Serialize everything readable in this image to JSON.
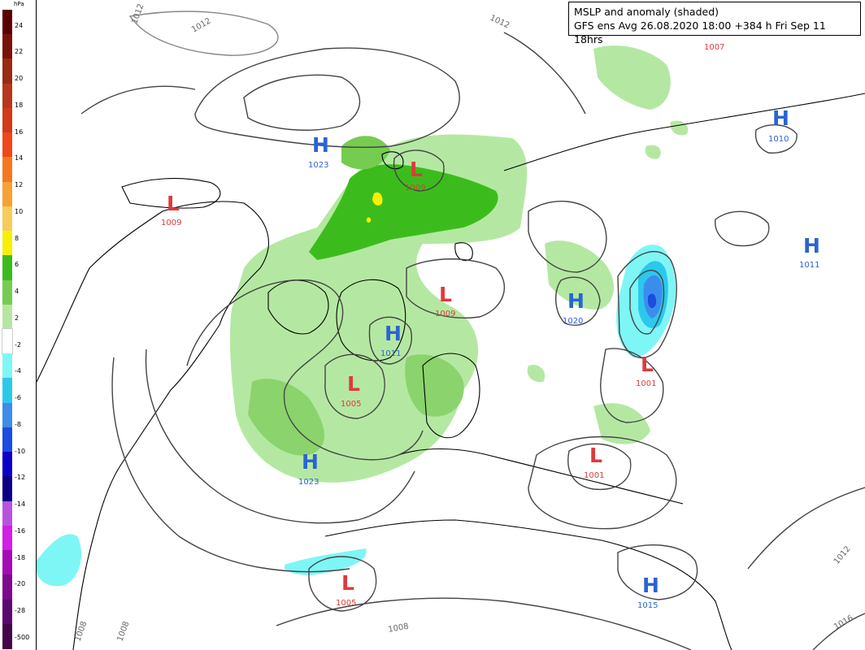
{
  "title": {
    "line1": "MSLP and anomaly (shaded)",
    "line2": "GFS ens Avg 26.08.2020 18:00 +384 h Fri Sep 11 18hrs"
  },
  "legend": {
    "unit": "hPa",
    "ticks": [
      "24",
      "22",
      "20",
      "18",
      "16",
      "14",
      "12",
      "10",
      "8",
      "6",
      "4",
      "2",
      "-2",
      "-4",
      "-6",
      "-8",
      "-10",
      "-12",
      "-14",
      "-16",
      "-18",
      "-20",
      "-28",
      "-500"
    ],
    "colors": [
      "#5a0000",
      "#7a1208",
      "#9a2a14",
      "#b8361c",
      "#d23a18",
      "#f0461a",
      "#f6781e",
      "#f8a232",
      "#f8cc5a",
      "#f8f000",
      "#3cbc1c",
      "#76cc50",
      "#b4e8a2",
      "#ffffff",
      "#7ef6f6",
      "#2cc8ec",
      "#3c8cec",
      "#1c4ce0",
      "#0c00c8",
      "#0c0084",
      "#ba52e0",
      "#d21ee6",
      "#a40ab6",
      "#7c0a8a",
      "#5c0670",
      "#44044c"
    ]
  },
  "pressure_centers": [
    {
      "type": "H",
      "letter": "H",
      "value": "1023"
    },
    {
      "type": "L",
      "letter": "L",
      "value": "1009"
    },
    {
      "type": "L",
      "letter": "L",
      "value": "1009"
    },
    {
      "type": "H",
      "letter": "H",
      "value": "1010"
    },
    {
      "type": "H",
      "letter": "H",
      "value": "1011"
    },
    {
      "type": "L",
      "letter": "L",
      "value": "1009"
    },
    {
      "type": "H",
      "letter": "H",
      "value": "1020"
    },
    {
      "type": "H",
      "letter": "H",
      "value": "1011"
    },
    {
      "type": "L",
      "letter": "L",
      "value": "1005"
    },
    {
      "type": "L",
      "letter": "L",
      "value": "1001"
    },
    {
      "type": "H",
      "letter": "H",
      "value": "1023"
    },
    {
      "type": "L",
      "letter": "L",
      "value": "1001"
    },
    {
      "type": "L",
      "letter": "L",
      "value": "1005"
    },
    {
      "type": "H",
      "letter": "H",
      "value": "1015"
    }
  ],
  "isobar_labels": [
    "1012",
    "1012",
    "1012",
    "1007",
    "1008",
    "1008",
    "1008",
    "1012",
    "1016"
  ]
}
